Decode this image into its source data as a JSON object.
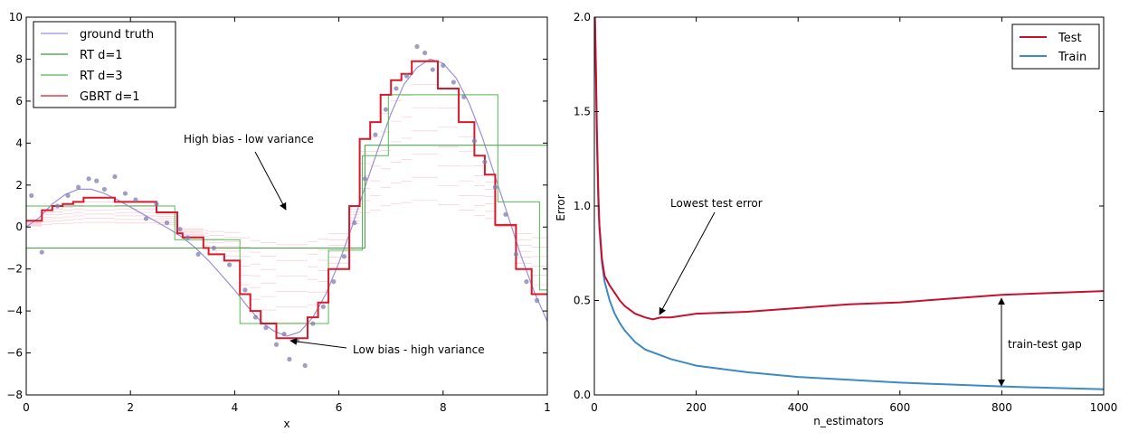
{
  "chart_data": [
    {
      "type": "line",
      "xlabel": "x",
      "ylabel": "",
      "xlim": [
        0,
        10
      ],
      "ylim": [
        -8,
        10
      ],
      "x_ticks": [
        "0",
        "2",
        "4",
        "6",
        "8",
        "1"
      ],
      "y_ticks": [
        "10",
        "8",
        "6",
        "4",
        "2",
        "0",
        "−2",
        "−4",
        "−6",
        "−8"
      ],
      "grid": false,
      "legend_position": "top-left",
      "colors": {
        "ground_truth": "#9b8fd6",
        "rt_d1": "#3a9a3a",
        "rt_d3": "#55b855",
        "gbrt": "#d9182b",
        "residuals": "#f7a6b6",
        "points": "#7f7fb0"
      },
      "series": [
        {
          "name": "ground truth",
          "x": [
            0,
            0.25,
            0.5,
            0.75,
            1.0,
            1.25,
            1.5,
            1.75,
            2.0,
            2.25,
            2.5,
            2.75,
            3.0,
            3.25,
            3.5,
            3.75,
            4.0,
            4.25,
            4.5,
            4.75,
            5.0,
            5.25,
            5.5,
            5.75,
            6.0,
            6.25,
            6.5,
            6.75,
            7.0,
            7.25,
            7.5,
            7.75,
            8.0,
            8.25,
            8.5,
            8.75,
            9.0,
            9.25,
            9.5,
            9.75,
            10.0
          ],
          "values": [
            0.0,
            0.45,
            1.1,
            1.55,
            1.8,
            1.8,
            1.6,
            1.3,
            0.95,
            0.6,
            0.25,
            -0.1,
            -0.5,
            -1.0,
            -1.6,
            -2.3,
            -3.0,
            -3.8,
            -4.5,
            -4.95,
            -5.2,
            -5.0,
            -4.3,
            -3.2,
            -1.7,
            0.0,
            1.9,
            3.7,
            5.4,
            6.8,
            7.6,
            8.0,
            7.8,
            7.1,
            5.9,
            4.3,
            2.4,
            0.5,
            -1.4,
            -3.1,
            -4.5
          ]
        },
        {
          "name": "RT d=1",
          "x": [
            0,
            6.5,
            6.5,
            10.0
          ],
          "values": [
            -1.0,
            -1.0,
            3.9,
            3.9
          ]
        },
        {
          "name": "RT d=3",
          "x": [
            0,
            2.85,
            2.85,
            4.1,
            4.1,
            5.8,
            5.8,
            6.45,
            6.45,
            6.95,
            6.95,
            9.05,
            9.05,
            9.85,
            9.85,
            10.0
          ],
          "values": [
            1.0,
            1.0,
            -0.6,
            -0.6,
            -4.6,
            -4.6,
            -1.1,
            -1.1,
            3.4,
            3.4,
            6.3,
            6.3,
            1.2,
            1.2,
            -3.0,
            -3.0
          ]
        },
        {
          "name": "GBRT d=1",
          "x": [
            0,
            0.3,
            0.3,
            0.5,
            0.5,
            0.7,
            0.7,
            0.9,
            0.9,
            1.1,
            1.1,
            1.7,
            1.7,
            2.5,
            2.5,
            2.9,
            2.9,
            3.0,
            3.0,
            3.4,
            3.4,
            3.5,
            3.5,
            3.8,
            3.8,
            4.1,
            4.1,
            4.3,
            4.3,
            4.5,
            4.5,
            4.8,
            4.8,
            5.4,
            5.4,
            5.6,
            5.6,
            5.8,
            5.8,
            6.2,
            6.2,
            6.4,
            6.4,
            6.6,
            6.6,
            6.8,
            6.8,
            7.0,
            7.0,
            7.2,
            7.2,
            7.4,
            7.4,
            7.9,
            7.9,
            8.3,
            8.3,
            8.6,
            8.6,
            8.8,
            8.8,
            9.0,
            9.0,
            9.4,
            9.4,
            9.7,
            9.7,
            10.0
          ],
          "values": [
            0.3,
            0.3,
            0.8,
            0.8,
            1.0,
            1.0,
            1.1,
            1.1,
            1.2,
            1.2,
            1.4,
            1.4,
            1.2,
            1.2,
            0.7,
            0.7,
            -0.3,
            -0.3,
            -0.5,
            -0.5,
            -1.0,
            -1.0,
            -1.3,
            -1.3,
            -1.6,
            -1.6,
            -3.2,
            -3.2,
            -4.0,
            -4.0,
            -4.6,
            -4.6,
            -5.3,
            -5.3,
            -4.3,
            -4.3,
            -3.6,
            -3.6,
            -2.0,
            -2.0,
            1.0,
            1.0,
            4.2,
            4.2,
            5.0,
            5.0,
            6.3,
            6.3,
            7.0,
            7.0,
            7.3,
            7.3,
            7.9,
            7.9,
            6.6,
            6.6,
            5.0,
            5.0,
            3.4,
            3.4,
            2.5,
            2.5,
            0.1,
            0.1,
            -2.0,
            -2.0,
            -3.2,
            -3.2
          ]
        }
      ],
      "points": {
        "x": [
          0.1,
          0.3,
          0.6,
          0.8,
          1.0,
          1.2,
          1.35,
          1.5,
          1.7,
          1.9,
          2.1,
          2.3,
          2.5,
          2.7,
          2.95,
          3.1,
          3.3,
          3.6,
          3.9,
          4.2,
          4.4,
          4.6,
          4.8,
          4.95,
          5.05,
          5.2,
          5.35,
          5.5,
          5.7,
          5.9,
          6.1,
          6.3,
          6.5,
          6.7,
          6.9,
          7.1,
          7.3,
          7.5,
          7.65,
          7.8,
          8.0,
          8.2,
          8.4,
          8.6,
          8.8,
          9.0,
          9.2,
          9.4,
          9.6,
          9.8
        ],
        "y": [
          1.5,
          -1.2,
          1.0,
          1.5,
          1.9,
          2.3,
          2.2,
          1.8,
          2.4,
          1.6,
          1.3,
          0.4,
          1.1,
          0.2,
          -0.1,
          -0.5,
          -1.3,
          -1.0,
          -1.8,
          -3.0,
          -4.3,
          -4.8,
          -5.6,
          -5.1,
          -6.3,
          -5.4,
          -6.6,
          -4.6,
          -3.8,
          -2.6,
          -1.4,
          0.2,
          2.3,
          4.4,
          5.6,
          6.6,
          7.2,
          8.6,
          8.3,
          7.5,
          7.7,
          6.9,
          6.2,
          4.1,
          3.1,
          1.9,
          0.6,
          -1.3,
          -2.6,
          -3.5
        ]
      },
      "annotations": [
        {
          "text": "High bias - low variance",
          "xy": [
            5.0,
            0.7
          ],
          "xytext": [
            3.05,
            4.6
          ]
        },
        {
          "text": "Low bias - high variance",
          "xy": [
            5.0,
            -5.3
          ],
          "xytext": [
            6.25,
            -5.8
          ]
        }
      ]
    },
    {
      "type": "line",
      "xlabel": "n_estimators",
      "ylabel": "Error",
      "xlim": [
        0,
        1000
      ],
      "ylim": [
        0.0,
        2.0
      ],
      "x_ticks": [
        "0",
        "200",
        "400",
        "600",
        "800",
        "1000"
      ],
      "y_ticks": [
        "2.0",
        "1.5",
        "1.0",
        "0.5",
        "0.0"
      ],
      "grid": false,
      "legend_position": "top-right",
      "colors": {
        "test": "#c8102e",
        "train": "#3b8bc4"
      },
      "series": [
        {
          "name": "Test",
          "x": [
            1,
            3,
            5,
            8,
            10,
            15,
            20,
            30,
            40,
            50,
            60,
            80,
            100,
            115,
            130,
            150,
            200,
            300,
            400,
            500,
            600,
            700,
            800,
            900,
            1000
          ],
          "values": [
            2.0,
            1.75,
            1.4,
            1.05,
            0.9,
            0.72,
            0.63,
            0.58,
            0.54,
            0.5,
            0.47,
            0.43,
            0.41,
            0.4,
            0.41,
            0.41,
            0.43,
            0.44,
            0.46,
            0.48,
            0.49,
            0.51,
            0.53,
            0.54,
            0.55
          ]
        },
        {
          "name": "Train",
          "x": [
            1,
            3,
            5,
            8,
            10,
            15,
            20,
            30,
            40,
            50,
            60,
            80,
            100,
            150,
            200,
            300,
            400,
            500,
            600,
            700,
            800,
            900,
            1000
          ],
          "values": [
            2.0,
            1.7,
            1.35,
            1.0,
            0.88,
            0.7,
            0.6,
            0.5,
            0.43,
            0.38,
            0.34,
            0.28,
            0.24,
            0.19,
            0.155,
            0.12,
            0.095,
            0.08,
            0.065,
            0.055,
            0.045,
            0.037,
            0.03
          ]
        }
      ],
      "annotations": [
        {
          "text": "Lowest test error",
          "xy": [
            125,
            0.42
          ],
          "xytext": [
            145,
            1.0
          ]
        },
        {
          "text": "train-test gap",
          "xy": [
            800,
            0.05
          ],
          "xytext": [
            800,
            0.52
          ]
        }
      ]
    }
  ]
}
